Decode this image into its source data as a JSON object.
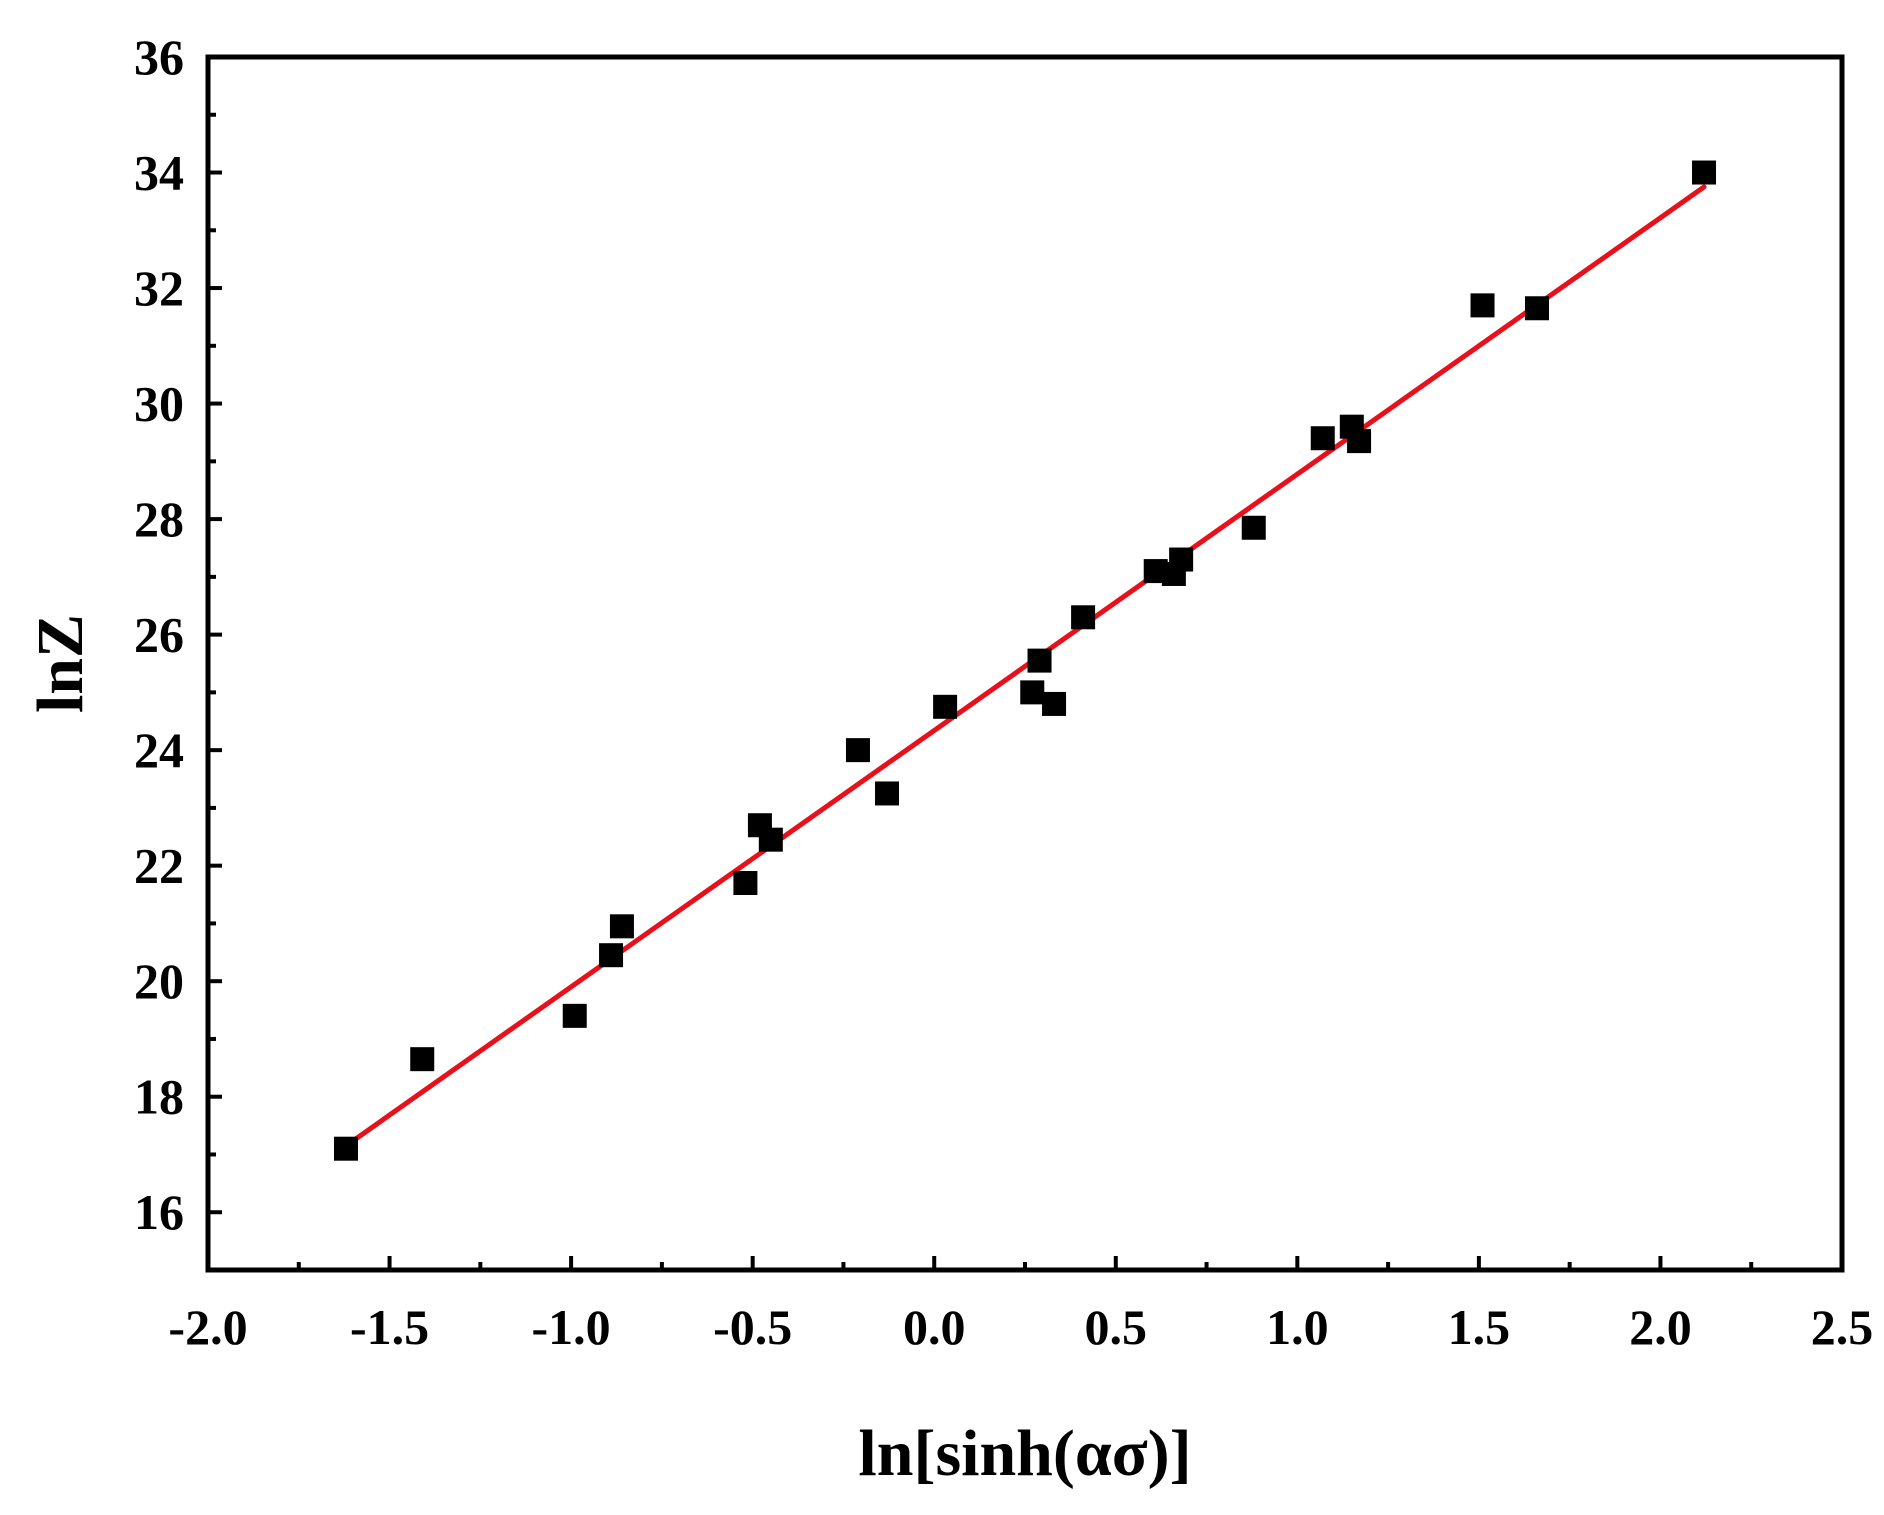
{
  "chart_data": {
    "type": "scatter",
    "xlabel": "ln[sinh(ασ)]",
    "ylabel": "lnZ",
    "xlim": [
      -2.0,
      2.5
    ],
    "ylim": [
      15,
      36
    ],
    "x_ticks": [
      -2.0,
      -1.5,
      -1.0,
      -0.5,
      0.0,
      0.5,
      1.0,
      1.5,
      2.0,
      2.5
    ],
    "x_tick_labels": [
      "-2.0",
      "-1.5",
      "-1.0",
      "-0.5",
      "0.0",
      "0.5",
      "1.0",
      "1.5",
      "2.0",
      "2.5"
    ],
    "y_ticks": [
      16,
      18,
      20,
      22,
      24,
      26,
      28,
      30,
      32,
      34,
      36
    ],
    "y_tick_labels": [
      "16",
      "18",
      "20",
      "22",
      "24",
      "26",
      "28",
      "30",
      "32",
      "34",
      "36"
    ],
    "grid": false,
    "marker_color": "#000000",
    "fit_color": "#e8101a",
    "series": [
      {
        "marker": "square",
        "x": [
          -1.62,
          -1.41,
          -0.99,
          -0.89,
          -0.86,
          -0.52,
          -0.48,
          -0.45,
          -0.21,
          -0.13,
          0.03,
          0.27,
          0.29,
          0.33,
          0.41,
          0.61,
          0.66,
          0.68,
          0.88,
          1.07,
          1.15,
          1.17,
          1.51,
          1.66,
          2.12
        ],
        "y": [
          17.1,
          18.65,
          19.4,
          20.45,
          20.95,
          21.7,
          22.7,
          22.45,
          24.0,
          23.25,
          24.75,
          25.0,
          25.55,
          24.8,
          26.3,
          27.1,
          27.05,
          27.3,
          27.85,
          29.4,
          29.6,
          29.35,
          31.7,
          31.65,
          34.0
        ]
      }
    ],
    "fit_line": {
      "type": "linear",
      "x": [
        -1.62,
        2.12
      ],
      "y": [
        17.15,
        33.75
      ]
    }
  }
}
